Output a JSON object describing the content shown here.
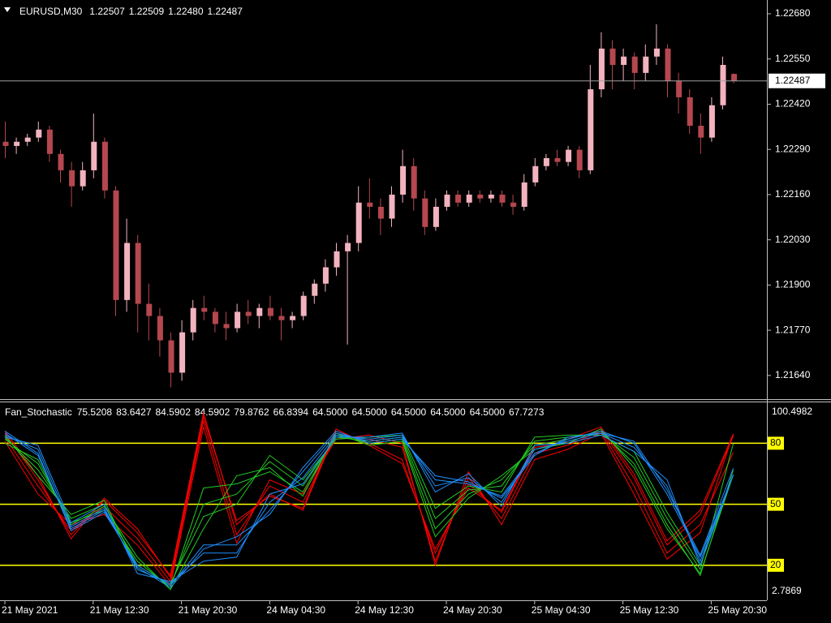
{
  "chart_data": [
    {
      "type": "candlestick",
      "title": "EURUSD,M30",
      "readout": [
        "1.22507",
        "1.22509",
        "1.22480",
        "1.22487"
      ],
      "categories": [
        "21 May 2021",
        null,
        null,
        null,
        null,
        null,
        null,
        null,
        "21 May 12:30",
        null,
        null,
        null,
        null,
        null,
        null,
        null,
        "21 May 20:30",
        null,
        null,
        null,
        null,
        null,
        null,
        null,
        "24 May 04:30",
        null,
        null,
        null,
        null,
        null,
        null,
        null,
        "24 May 12:30",
        null,
        null,
        null,
        null,
        null,
        null,
        null,
        "24 May 20:30",
        null,
        null,
        null,
        null,
        null,
        null,
        null,
        "25 May 04:30",
        null,
        null,
        null,
        null,
        null,
        null,
        null,
        "25 May 12:30",
        null,
        null,
        null,
        null,
        null,
        null,
        null,
        "25 May 20:30",
        null,
        null
      ],
      "open": [
        1.22312,
        1.223,
        1.22312,
        1.22324,
        1.22347,
        1.22277,
        1.2223,
        1.22184,
        1.2223,
        1.22312,
        1.22172,
        1.21857,
        1.22021,
        1.21846,
        1.21811,
        1.21741,
        1.21648,
        1.21764,
        1.21834,
        1.21823,
        1.21788,
        1.21776,
        1.21823,
        1.21811,
        1.21834,
        1.21811,
        1.21799,
        1.21811,
        1.21869,
        1.21904,
        1.21951,
        1.21997,
        1.22021,
        1.22137,
        1.22125,
        1.22091,
        1.2216,
        1.22242,
        1.22149,
        1.22067,
        1.22125,
        1.2216,
        1.22137,
        1.2216,
        1.22149,
        1.2216,
        1.22137,
        1.22125,
        1.22195,
        1.22242,
        1.22265,
        1.22254,
        1.22289,
        1.2223,
        1.22463,
        1.2258,
        1.22533,
        1.22557,
        1.2251,
        1.22557,
        1.2258,
        1.22487,
        1.2244,
        1.22358,
        1.22324,
        1.22417,
        1.22507
      ],
      "high": [
        1.2237,
        1.22324,
        1.22335,
        1.2237,
        1.22358,
        1.22289,
        1.22254,
        1.22254,
        1.22393,
        1.22324,
        1.22184,
        1.22091,
        1.22044,
        1.21904,
        1.21834,
        1.21764,
        1.21799,
        1.21857,
        1.21869,
        1.21834,
        1.21823,
        1.21846,
        1.21857,
        1.21846,
        1.21869,
        1.21834,
        1.21823,
        1.21881,
        1.21916,
        1.21974,
        1.22021,
        1.22044,
        1.22184,
        1.22207,
        1.22149,
        1.22184,
        1.22289,
        1.22265,
        1.22172,
        1.22149,
        1.22172,
        1.22172,
        1.22172,
        1.22172,
        1.22172,
        1.22172,
        1.2216,
        1.22219,
        1.22265,
        1.22277,
        1.22289,
        1.223,
        1.223,
        1.22533,
        1.22627,
        1.22604,
        1.2258,
        1.22569,
        1.22592,
        1.2265,
        1.22592,
        1.2251,
        1.22463,
        1.22393,
        1.2244,
        1.22557,
        1.22509
      ],
      "low": [
        1.22265,
        1.22277,
        1.223,
        1.22312,
        1.22254,
        1.22195,
        1.22125,
        1.22172,
        1.22207,
        1.22149,
        1.21811,
        1.21823,
        1.21764,
        1.21741,
        1.21694,
        1.21606,
        1.21625,
        1.21741,
        1.21799,
        1.21764,
        1.21741,
        1.21764,
        1.21788,
        1.21776,
        1.21799,
        1.21741,
        1.21776,
        1.21799,
        1.21846,
        1.21881,
        1.21927,
        1.21729,
        1.21997,
        1.22091,
        1.22044,
        1.22067,
        1.22137,
        1.22114,
        1.22044,
        1.22056,
        1.22114,
        1.22125,
        1.22125,
        1.22137,
        1.22137,
        1.22125,
        1.22102,
        1.22114,
        1.22184,
        1.2223,
        1.22242,
        1.22242,
        1.22207,
        1.22219,
        1.2244,
        1.22463,
        1.22487,
        1.22463,
        1.22487,
        1.22533,
        1.2244,
        1.22393,
        1.22335,
        1.22277,
        1.22312,
        1.22405,
        1.2248
      ],
      "close": [
        1.223,
        1.22312,
        1.22324,
        1.22347,
        1.22277,
        1.2223,
        1.22184,
        1.2223,
        1.22312,
        1.22172,
        1.21857,
        1.22021,
        1.21846,
        1.21811,
        1.21741,
        1.21648,
        1.21764,
        1.21834,
        1.21823,
        1.21788,
        1.21776,
        1.21823,
        1.21811,
        1.21834,
        1.21811,
        1.21799,
        1.21811,
        1.21869,
        1.21904,
        1.21951,
        1.21997,
        1.22021,
        1.22137,
        1.22125,
        1.22091,
        1.2216,
        1.22242,
        1.22149,
        1.22067,
        1.22125,
        1.2216,
        1.22137,
        1.2216,
        1.22149,
        1.2216,
        1.22137,
        1.22125,
        1.22195,
        1.22242,
        1.22265,
        1.22254,
        1.22289,
        1.2223,
        1.22463,
        1.2258,
        1.22533,
        1.22557,
        1.2251,
        1.22557,
        1.2258,
        1.22487,
        1.2244,
        1.22358,
        1.22324,
        1.22417,
        1.22533,
        1.22487
      ],
      "up_color": "#f2b3bf",
      "down_color": "#b5474f",
      "ylim": [
        1.21572,
        1.22715
      ],
      "yticks": [
        {
          "value": 1.2268,
          "label": "1.22680"
        },
        {
          "value": 1.2255,
          "label": "1.22550"
        },
        {
          "value": 1.2242,
          "label": "1.22420"
        },
        {
          "value": 1.2229,
          "label": "1.22290"
        },
        {
          "value": 1.2216,
          "label": "1.22160"
        },
        {
          "value": 1.2203,
          "label": "1.22030"
        },
        {
          "value": 1.219,
          "label": "1.21900"
        },
        {
          "value": 1.2177,
          "label": "1.21770"
        },
        {
          "value": 1.2164,
          "label": "1.21640"
        }
      ]
    },
    {
      "type": "line",
      "title": "Fan_Stochastic",
      "readout": [
        "75.5208",
        "83.6427",
        "84.5902",
        "84.5902",
        "79.8762",
        "66.8394",
        "64.5000",
        "64.5000",
        "64.5000",
        "64.5000",
        "64.5000",
        "67.7273"
      ],
      "x": [
        0,
        3,
        6,
        9,
        12,
        15,
        18,
        21,
        24,
        27,
        30,
        33,
        36,
        39,
        42,
        45,
        48,
        51,
        54,
        57,
        60,
        63,
        66
      ],
      "series": [
        {
          "color": "#ff0000",
          "values": [
            83,
            59,
            37,
            49,
            33,
            12,
            91,
            35,
            59,
            51,
            84,
            82,
            78,
            22,
            63,
            43,
            75,
            79,
            86,
            59,
            26,
            40,
            75.5208
          ]
        },
        {
          "color": "#ff0000",
          "values": [
            85,
            62,
            35,
            52,
            36,
            15,
            95,
            40,
            55,
            47,
            86,
            80,
            72,
            26,
            60,
            46,
            78,
            80,
            87,
            63,
            30,
            45,
            83.6427
          ]
        },
        {
          "color": "#ff0000",
          "values": [
            81,
            55,
            40,
            45,
            30,
            10,
            88,
            31,
            62,
            55,
            82,
            84,
            80,
            20,
            66,
            40,
            72,
            77,
            85,
            55,
            23,
            36,
            84.5902
          ]
        },
        {
          "color": "#ff0000",
          "values": [
            86,
            64,
            33,
            53,
            38,
            14,
            93,
            42,
            54,
            48,
            87,
            79,
            70,
            28,
            58,
            47,
            79,
            82,
            88,
            65,
            32,
            47,
            84.5902
          ]
        },
        {
          "color": "#22cc22",
          "values": [
            83,
            67,
            43,
            50,
            20,
            10,
            50,
            55,
            71,
            59,
            83,
            81,
            83,
            43,
            57,
            59,
            81,
            83,
            85,
            73,
            43,
            18,
            79.8762
          ]
        },
        {
          "color": "#22cc22",
          "values": [
            82,
            70,
            41,
            47,
            22,
            9,
            58,
            60,
            66,
            56,
            84,
            80,
            82,
            38,
            55,
            62,
            79,
            82,
            86,
            70,
            40,
            15,
            66.8394
          ]
        },
        {
          "color": "#22cc22",
          "values": [
            84,
            64,
            45,
            52,
            18,
            11,
            44,
            50,
            74,
            62,
            82,
            83,
            84,
            48,
            59,
            56,
            83,
            84,
            84,
            76,
            46,
            20,
            64.5
          ]
        },
        {
          "color": "#22cc22",
          "values": [
            80,
            72,
            40,
            49,
            24,
            8,
            38,
            64,
            68,
            54,
            85,
            79,
            81,
            34,
            53,
            64,
            77,
            80,
            87,
            68,
            38,
            16,
            64.5
          ]
        },
        {
          "color": "#1e90ff",
          "values": [
            84,
            77,
            39,
            48,
            18,
            11,
            26,
            26,
            51,
            63,
            84,
            82,
            84,
            59,
            63,
            51,
            77,
            81,
            85,
            78,
            59,
            22,
            64.5
          ]
        },
        {
          "color": "#1e90ff",
          "values": [
            86,
            75,
            37,
            46,
            20,
            10,
            30,
            30,
            47,
            66,
            85,
            81,
            83,
            62,
            60,
            54,
            75,
            82,
            86,
            80,
            55,
            24,
            64.5
          ]
        },
        {
          "color": "#1e90ff",
          "values": [
            83,
            79,
            41,
            50,
            16,
            12,
            22,
            24,
            55,
            60,
            83,
            83,
            85,
            56,
            65,
            49,
            79,
            80,
            84,
            76,
            62,
            20,
            64.5
          ]
        },
        {
          "color": "#1e90ff",
          "values": [
            85,
            74,
            38,
            47,
            19,
            9,
            28,
            34,
            45,
            68,
            86,
            80,
            82,
            64,
            61,
            53,
            74,
            83,
            85,
            81,
            57,
            25,
            67.7273
          ]
        }
      ],
      "ylim": [
        2.7869,
        100.4982
      ],
      "levels": [
        20,
        50,
        80
      ],
      "level_color": "#ffff00"
    }
  ]
}
